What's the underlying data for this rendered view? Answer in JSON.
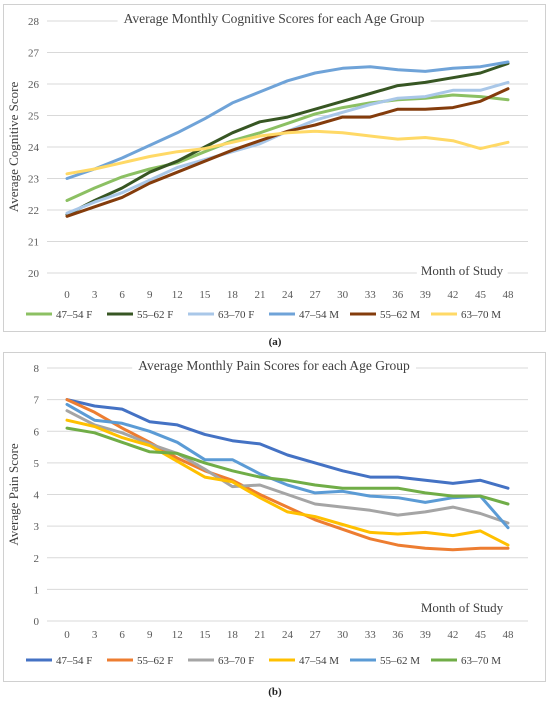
{
  "chart_data": [
    {
      "type": "line",
      "title": "Average Monthly Cognitive Scores for each Age Group",
      "xlabel": "Month of Study",
      "ylabel": "Average Cognitive Score",
      "panel_label": "(a)",
      "ylim": [
        20,
        28
      ],
      "yticks": [
        20,
        21,
        22,
        23,
        24,
        25,
        26,
        27,
        28
      ],
      "grid": true,
      "legend_position": "bottom",
      "categories": [
        "0",
        "3",
        "6",
        "9",
        "12",
        "15",
        "18",
        "21",
        "24",
        "27",
        "30",
        "33",
        "36",
        "39",
        "42",
        "45",
        "48"
      ],
      "series": [
        {
          "name": "47–54 F",
          "color": "#8cc063",
          "values": [
            22.3,
            22.7,
            23.05,
            23.3,
            23.5,
            23.85,
            24.2,
            24.45,
            24.75,
            25.05,
            25.25,
            25.4,
            25.5,
            25.55,
            25.65,
            25.6,
            25.5
          ]
        },
        {
          "name": "55–62 F",
          "color": "#375623",
          "values": [
            21.85,
            22.3,
            22.7,
            23.2,
            23.55,
            24.0,
            24.45,
            24.8,
            24.95,
            25.2,
            25.45,
            25.7,
            25.95,
            26.05,
            26.2,
            26.35,
            26.65
          ]
        },
        {
          "name": "63–70 F",
          "color": "#a9c7e8",
          "values": [
            21.9,
            22.25,
            22.55,
            22.95,
            23.35,
            23.6,
            23.85,
            24.1,
            24.5,
            24.85,
            25.1,
            25.35,
            25.55,
            25.6,
            25.8,
            25.8,
            26.05
          ]
        },
        {
          "name": "47–54 M",
          "color": "#6fa3d8",
          "values": [
            23.0,
            23.3,
            23.65,
            24.05,
            24.45,
            24.9,
            25.4,
            25.75,
            26.1,
            26.35,
            26.5,
            26.55,
            26.45,
            26.4,
            26.5,
            26.55,
            26.7
          ]
        },
        {
          "name": "55–62 M",
          "color": "#843c0c",
          "values": [
            21.8,
            22.1,
            22.4,
            22.85,
            23.2,
            23.55,
            23.9,
            24.2,
            24.5,
            24.7,
            24.95,
            24.95,
            25.2,
            25.2,
            25.25,
            25.45,
            25.85
          ]
        },
        {
          "name": "63–70 M",
          "color": "#ffd966",
          "values": [
            23.15,
            23.3,
            23.5,
            23.7,
            23.85,
            23.95,
            24.15,
            24.35,
            24.45,
            24.5,
            24.45,
            24.35,
            24.25,
            24.3,
            24.2,
            23.95,
            24.15
          ]
        }
      ]
    },
    {
      "type": "line",
      "title": "Average Monthly Pain Scores for each Age Group",
      "xlabel": "Month of Study",
      "ylabel": "Average Pain Score",
      "panel_label": "(b)",
      "ylim": [
        0,
        8
      ],
      "yticks": [
        0,
        1,
        2,
        3,
        4,
        5,
        6,
        7,
        8
      ],
      "grid": true,
      "legend_position": "bottom",
      "categories": [
        "0",
        "3",
        "6",
        "9",
        "12",
        "15",
        "18",
        "21",
        "24",
        "27",
        "30",
        "33",
        "36",
        "39",
        "42",
        "45",
        "48"
      ],
      "series": [
        {
          "name": "47–54 F",
          "color": "#4472c4",
          "values": [
            7.0,
            6.8,
            6.7,
            6.3,
            6.2,
            5.9,
            5.7,
            5.6,
            5.25,
            5.0,
            4.75,
            4.55,
            4.55,
            4.45,
            4.35,
            4.45,
            4.2
          ]
        },
        {
          "name": "55–62 F",
          "color": "#ed7d31",
          "values": [
            7.0,
            6.6,
            6.1,
            5.65,
            5.15,
            4.75,
            4.45,
            4.0,
            3.6,
            3.2,
            2.9,
            2.6,
            2.4,
            2.3,
            2.25,
            2.3,
            2.3
          ]
        },
        {
          "name": "63–70 F",
          "color": "#a5a5a5",
          "values": [
            6.65,
            6.2,
            5.95,
            5.6,
            5.3,
            4.8,
            4.25,
            4.3,
            4.0,
            3.7,
            3.6,
            3.5,
            3.35,
            3.45,
            3.6,
            3.4,
            3.1
          ]
        },
        {
          "name": "47–54 M",
          "color": "#ffc000",
          "values": [
            6.35,
            6.15,
            5.8,
            5.55,
            5.05,
            4.55,
            4.4,
            3.9,
            3.45,
            3.3,
            3.05,
            2.8,
            2.75,
            2.8,
            2.7,
            2.85,
            2.4
          ]
        },
        {
          "name": "55–62 M",
          "color": "#5b9bd5",
          "values": [
            6.85,
            6.35,
            6.25,
            6.0,
            5.65,
            5.1,
            5.1,
            4.65,
            4.3,
            4.05,
            4.1,
            3.95,
            3.9,
            3.75,
            3.9,
            3.95,
            2.95
          ]
        },
        {
          "name": "63–70 M",
          "color": "#70ad47",
          "values": [
            6.1,
            5.95,
            5.65,
            5.35,
            5.3,
            5.0,
            4.75,
            4.55,
            4.45,
            4.3,
            4.2,
            4.2,
            4.2,
            4.05,
            3.95,
            3.95,
            3.7
          ]
        }
      ]
    }
  ]
}
